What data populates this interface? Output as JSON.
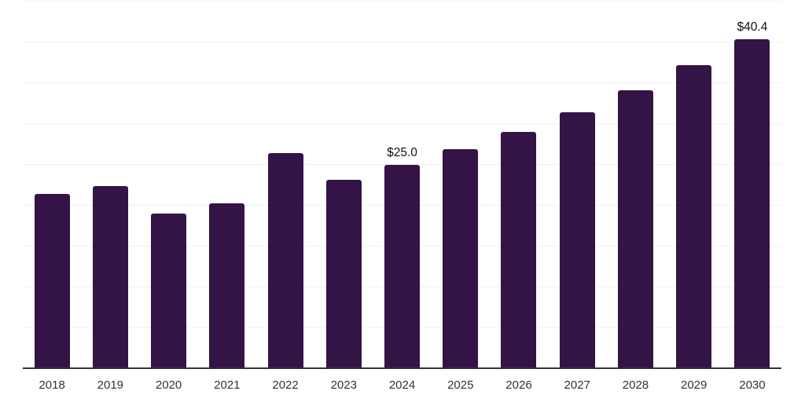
{
  "chart_data": {
    "type": "bar",
    "title": "",
    "categories": [
      "2018",
      "2019",
      "2020",
      "2021",
      "2022",
      "2023",
      "2024",
      "2025",
      "2026",
      "2027",
      "2028",
      "2029",
      "2030"
    ],
    "values": [
      21.4,
      22.4,
      19.0,
      20.3,
      26.4,
      23.2,
      25.0,
      26.9,
      29.0,
      31.4,
      34.1,
      37.2,
      40.4
    ],
    "value_labels": {
      "2024": "$25.0",
      "2030": "$40.4"
    },
    "xlabel": "",
    "ylabel": "",
    "ylim": [
      0,
      45
    ],
    "grid_step": 5,
    "grid": true,
    "legend": "none",
    "colors": {
      "bar": "#341347",
      "gridline": "#f0f0f0",
      "axis_line": "#333333",
      "tick_label": "#333333",
      "value_label": "#111111",
      "background": "#ffffff"
    }
  }
}
